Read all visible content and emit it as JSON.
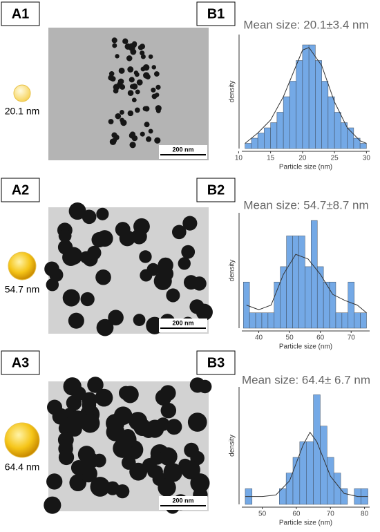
{
  "image_panels": [
    {
      "label": "A1",
      "size_label": "20.1 nm",
      "scale_bar": "200 nm"
    },
    {
      "label": "A2",
      "size_label": "54.7 nm",
      "scale_bar": "200 nm"
    },
    {
      "label": "A3",
      "size_label": "64.4 nm",
      "scale_bar": "200 nm"
    }
  ],
  "chart_data": [
    {
      "type": "histogram",
      "label": "B1",
      "title": "Mean size: 20.1±3.4 nm",
      "xlabel": "Particle size (nm)",
      "ylabel": "density",
      "bins": [
        11,
        12,
        13,
        14,
        15,
        16,
        17,
        18,
        19,
        20,
        21,
        22,
        23,
        24,
        25,
        26,
        27,
        28,
        29,
        30
      ],
      "counts": [
        1,
        2,
        3,
        4,
        5,
        7,
        10,
        13,
        17,
        20,
        20,
        17,
        13,
        10,
        7,
        5,
        4,
        2,
        1
      ],
      "kde": {
        "x": [
          11,
          13,
          15,
          17,
          19,
          20,
          21,
          23,
          25,
          27,
          29,
          30
        ],
        "values": [
          1,
          3,
          5.5,
          10,
          16,
          19,
          19.5,
          16,
          9,
          4,
          1.5,
          1
        ]
      },
      "xlim": [
        10.5,
        30.5
      ],
      "xticks": [
        10,
        15,
        20,
        25,
        30
      ],
      "ylim": [
        0,
        22
      ],
      "color": "#74a9e6"
    },
    {
      "type": "histogram",
      "label": "B2",
      "title": "Mean size: 54.7±8.7 nm",
      "xlabel": "Particle size (nm)",
      "ylabel": "density",
      "bins": [
        35,
        37,
        39,
        41,
        43,
        45,
        47,
        49,
        51,
        53,
        55,
        57,
        59,
        61,
        63,
        65,
        67,
        69,
        71,
        73,
        75
      ],
      "counts": [
        3,
        1,
        1,
        1,
        1,
        3,
        4,
        6,
        6,
        6,
        4,
        7,
        4,
        3,
        3,
        1,
        1,
        3,
        1,
        1
      ],
      "kde": {
        "x": [
          36,
          40,
          44,
          48,
          52,
          56,
          60,
          64,
          68,
          72,
          75
        ],
        "values": [
          1.5,
          1.2,
          1.5,
          3.5,
          4.8,
          4.5,
          3.5,
          2.2,
          1.8,
          1.5,
          1
        ]
      },
      "xlim": [
        34.5,
        76
      ],
      "xticks": [
        40,
        50,
        60,
        70
      ],
      "ylim": [
        0,
        7.5
      ],
      "color": "#74a9e6"
    },
    {
      "type": "histogram",
      "label": "B3",
      "title": "Mean size: 64.4± 6.7 nm",
      "xlabel": "Particle size (nm)",
      "ylabel": "density",
      "bins": [
        45,
        47,
        49,
        51,
        53,
        55,
        57,
        59,
        61,
        63,
        65,
        67,
        69,
        71,
        73,
        75,
        77,
        79,
        81
      ],
      "counts": [
        1,
        0,
        0,
        0,
        0,
        1,
        2,
        3,
        4,
        4,
        7,
        5,
        3,
        2,
        1,
        0,
        1,
        1
      ],
      "kde": {
        "x": [
          45,
          50,
          54,
          58,
          62,
          64,
          66,
          70,
          74,
          78,
          81
        ],
        "values": [
          0.5,
          0.5,
          0.6,
          1.5,
          3.8,
          4.6,
          4,
          1.8,
          0.7,
          0.5,
          0.5
        ]
      },
      "xlim": [
        44,
        81.5
      ],
      "xticks": [
        50,
        60,
        70,
        80
      ],
      "ylim": [
        0,
        7.5
      ],
      "color": "#74a9e6"
    }
  ]
}
